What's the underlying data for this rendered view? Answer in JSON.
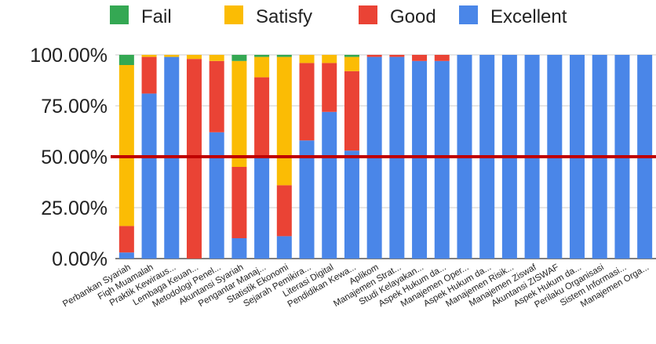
{
  "chart_data": {
    "type": "bar",
    "stacked": true,
    "categories": [
      "Perbankan Syariah",
      "Fiqh Muamalah",
      "Praktik Kewiraus...",
      "Lembaga Keuan...",
      "Metodologi Penel...",
      "Akuntansi Syariah",
      "Pengantar Manaj...",
      "Statistik Ekonomi",
      "Sejarah Pemikira...",
      "Literasi Digital",
      "Pendidikan Kewa...",
      "Aplikom",
      "Manajemen Strat...",
      "Studi Kelayakan...",
      "Aspek Hukum da...",
      "Manajemen Oper...",
      "Aspek Hukum da...",
      "Manajemen Risik...",
      "Manajemen Ziswaf",
      "Akuntansi ZISWAF",
      "Aspek Hukum da...",
      "Perilaku Organisasi",
      "Sistem Informasi...",
      "Manajemen Orga..."
    ],
    "series": [
      {
        "name": "Excellent",
        "color": "#4a86e8",
        "values": [
          3,
          81,
          99,
          0,
          62,
          10,
          50,
          11,
          58,
          72,
          53,
          99,
          99,
          97,
          97,
          100,
          100,
          100,
          100,
          100,
          100,
          100,
          100,
          100
        ]
      },
      {
        "name": "Good",
        "color": "#ea4335",
        "values": [
          13,
          18,
          0,
          98,
          35,
          35,
          39,
          25,
          38,
          24,
          39,
          1,
          1,
          3,
          3,
          0,
          0,
          0,
          0,
          0,
          0,
          0,
          0,
          0
        ]
      },
      {
        "name": "Satisfy",
        "color": "#fbbc04",
        "values": [
          79,
          1,
          1,
          2,
          3,
          52,
          10,
          63,
          4,
          4,
          7,
          0,
          0,
          0,
          0,
          0,
          0,
          0,
          0,
          0,
          0,
          0,
          0,
          0
        ]
      },
      {
        "name": "Fail",
        "color": "#34a853",
        "values": [
          5,
          0,
          0,
          0,
          0,
          3,
          1,
          1,
          0,
          0,
          1,
          0,
          0,
          0,
          0,
          0,
          0,
          0,
          0,
          0,
          0,
          0,
          0,
          0
        ]
      }
    ],
    "legend_order": [
      "Fail",
      "Satisfy",
      "Good",
      "Excellent"
    ],
    "y_ticks": [
      "0.00%",
      "25.00%",
      "50.00%",
      "75.00%",
      "100.00%"
    ],
    "ylim": [
      0,
      100
    ],
    "reference_line": {
      "value": 50,
      "color": "#c00000"
    },
    "legend_position": "top",
    "grid": true
  }
}
